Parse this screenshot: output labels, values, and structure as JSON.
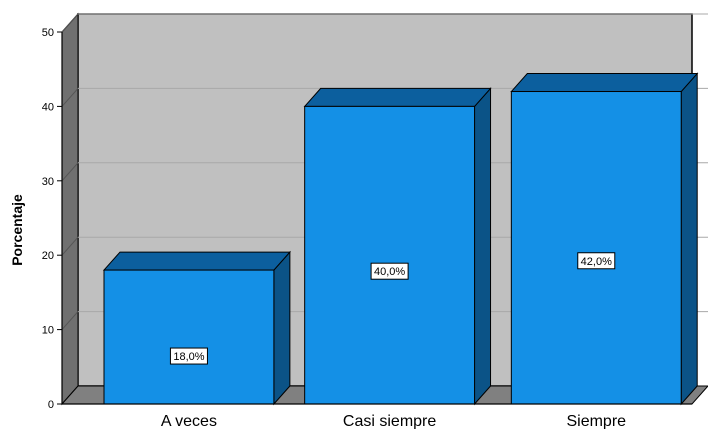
{
  "chart_data": {
    "type": "bar",
    "categories": [
      "A veces",
      "Casi siempre",
      "Siempre"
    ],
    "values": [
      18.0,
      40.0,
      42.0
    ],
    "data_labels": [
      "18,0%",
      "40,0%",
      "42,0%"
    ],
    "title": "",
    "xlabel": "",
    "ylabel": "Porcentaje",
    "ylim": [
      0,
      50
    ],
    "yticks": [
      "0",
      "10",
      "20",
      "30",
      "40",
      "50"
    ],
    "grid": true,
    "style": "3d",
    "colors": {
      "bar_front": "#1490e6",
      "bar_top": "#0c5f9e",
      "bar_side": "#0b5387",
      "back_wall": "#c0c0c0",
      "floor": "#808080",
      "side_wall": "#707070",
      "grid_line": "#a8a8a8"
    }
  }
}
